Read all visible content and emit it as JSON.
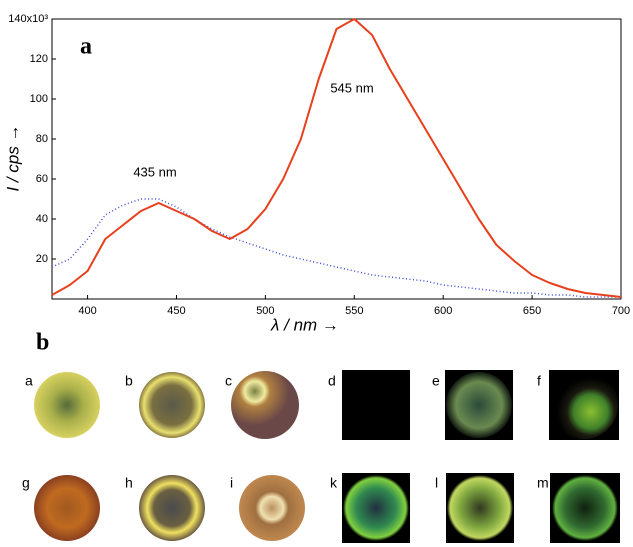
{
  "chart_data": {
    "type": "line",
    "annotations": [
      "a",
      "435 nm",
      "545 nm"
    ],
    "xlabel": "λ / nm →",
    "ylabel": "I / cps →",
    "x": [
      380,
      390,
      400,
      410,
      420,
      430,
      440,
      450,
      460,
      470,
      480,
      490,
      500,
      510,
      520,
      530,
      540,
      550,
      560,
      570,
      580,
      590,
      600,
      610,
      620,
      630,
      640,
      650,
      660,
      670,
      680,
      690,
      700
    ],
    "series": [
      {
        "color": "#e8401c",
        "style": "solid",
        "values": [
          2,
          7,
          14,
          30,
          37,
          44,
          48,
          44,
          40,
          34,
          30,
          35,
          45,
          60,
          80,
          110,
          135,
          140,
          132,
          115,
          100,
          85,
          70,
          55,
          40,
          27,
          19,
          12,
          8,
          5,
          3,
          2,
          1
        ]
      },
      {
        "color": "#3b4fd6",
        "style": "dotted",
        "values": [
          16,
          20,
          30,
          42,
          47,
          50,
          50,
          46,
          40,
          35,
          31,
          28,
          25,
          22,
          20,
          18,
          16,
          14,
          12,
          11,
          10,
          9,
          7,
          6,
          5,
          4,
          3,
          3,
          2,
          2,
          1,
          1,
          1
        ]
      }
    ],
    "xlim": [
      380,
      700
    ],
    "xticks": [
      400,
      450,
      500,
      550,
      600,
      650,
      700
    ],
    "ylim": [
      0,
      140
    ],
    "yticks": [
      20,
      40,
      60,
      80,
      100,
      120,
      {
        "value": 140,
        "label": "140x10³"
      }
    ]
  },
  "panel_b": {
    "label": "b",
    "images": [
      "a",
      "b",
      "c",
      "d",
      "e",
      "f",
      "g",
      "h",
      "i",
      "k",
      "l",
      "m"
    ]
  }
}
